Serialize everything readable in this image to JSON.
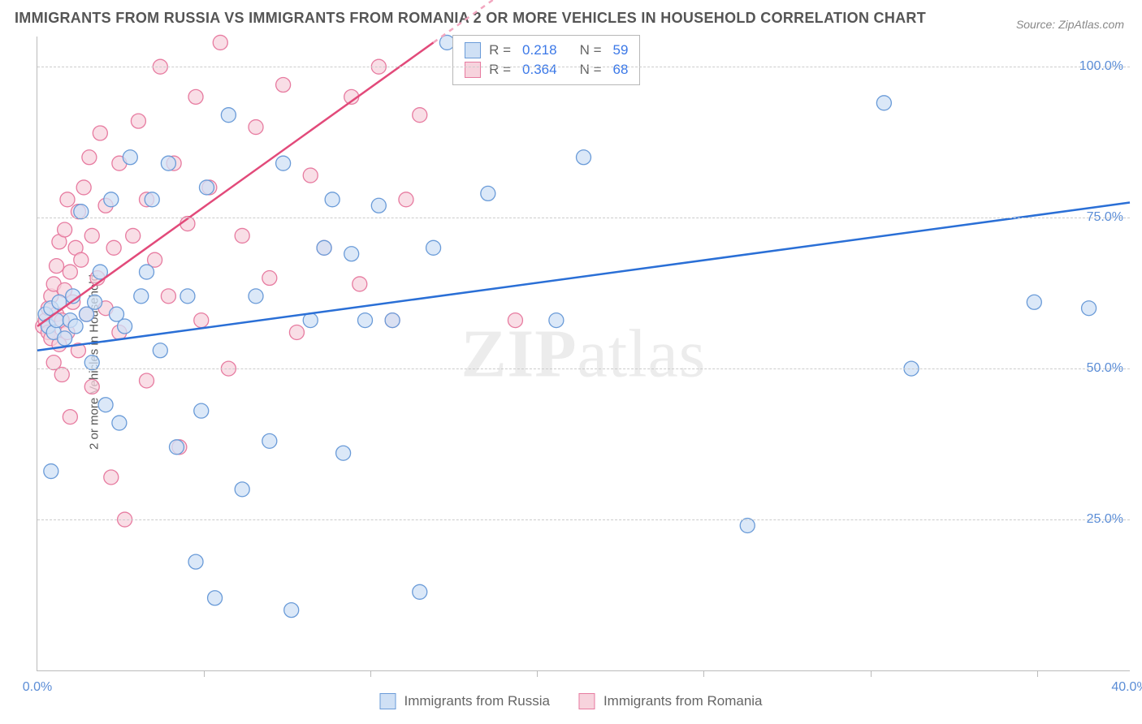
{
  "title": "IMMIGRANTS FROM RUSSIA VS IMMIGRANTS FROM ROMANIA 2 OR MORE VEHICLES IN HOUSEHOLD CORRELATION CHART",
  "source": "Source: ZipAtlas.com",
  "y_axis_label": "2 or more Vehicles in Household",
  "watermark_bold": "ZIP",
  "watermark_light": "atlas",
  "chart": {
    "type": "scatter",
    "background_color": "#ffffff",
    "grid_color": "#cccccc",
    "axis_color": "#bbbbbb",
    "xlim": [
      0,
      40
    ],
    "ylim": [
      0,
      105
    ],
    "x_ticks": [
      0,
      40
    ],
    "x_tick_labels": [
      "0.0%",
      "40.0%"
    ],
    "x_minor_ticks": [
      6.1,
      12.2,
      18.3,
      24.4,
      30.5,
      36.6
    ],
    "y_ticks": [
      25,
      50,
      75,
      100
    ],
    "y_tick_labels": [
      "25.0%",
      "50.0%",
      "75.0%",
      "100.0%"
    ],
    "series": [
      {
        "name": "Immigrants from Russia",
        "label": "Immigrants from Russia",
        "marker_fill": "#cfe0f5",
        "marker_stroke": "#6a9bd8",
        "marker_radius": 9,
        "line_color": "#2a6fd6",
        "line_width": 2.5,
        "dash_color": "#9ab8e6",
        "R": "0.218",
        "N": "59",
        "trend": {
          "x1": 0,
          "y1": 53,
          "x2": 40,
          "y2": 77.5
        },
        "points": [
          [
            0.3,
            59
          ],
          [
            0.4,
            57
          ],
          [
            0.5,
            60
          ],
          [
            0.6,
            56
          ],
          [
            0.7,
            58
          ],
          [
            0.8,
            61
          ],
          [
            0.5,
            33
          ],
          [
            1.0,
            55
          ],
          [
            1.2,
            58
          ],
          [
            1.3,
            62
          ],
          [
            1.4,
            57
          ],
          [
            1.6,
            76
          ],
          [
            1.8,
            59
          ],
          [
            2.0,
            51
          ],
          [
            2.1,
            61
          ],
          [
            2.3,
            66
          ],
          [
            2.5,
            44
          ],
          [
            2.7,
            78
          ],
          [
            2.9,
            59
          ],
          [
            3.0,
            41
          ],
          [
            3.2,
            57
          ],
          [
            3.4,
            85
          ],
          [
            3.8,
            62
          ],
          [
            4.0,
            66
          ],
          [
            4.2,
            78
          ],
          [
            4.5,
            53
          ],
          [
            4.8,
            84
          ],
          [
            5.1,
            37
          ],
          [
            5.5,
            62
          ],
          [
            5.8,
            18
          ],
          [
            6.0,
            43
          ],
          [
            6.2,
            80
          ],
          [
            6.5,
            12
          ],
          [
            7.0,
            92
          ],
          [
            7.5,
            30
          ],
          [
            8.0,
            62
          ],
          [
            8.5,
            38
          ],
          [
            9.0,
            84
          ],
          [
            9.3,
            10
          ],
          [
            10.0,
            58
          ],
          [
            10.5,
            70
          ],
          [
            10.8,
            78
          ],
          [
            11.2,
            36
          ],
          [
            11.5,
            69
          ],
          [
            12.0,
            58
          ],
          [
            12.5,
            77
          ],
          [
            13.0,
            58
          ],
          [
            14.0,
            13
          ],
          [
            14.5,
            70
          ],
          [
            15.0,
            104
          ],
          [
            16.5,
            79
          ],
          [
            18.0,
            103
          ],
          [
            19.0,
            58
          ],
          [
            20.0,
            85
          ],
          [
            26.0,
            24
          ],
          [
            31.0,
            94
          ],
          [
            32.0,
            50
          ],
          [
            36.5,
            61
          ],
          [
            38.5,
            60
          ]
        ]
      },
      {
        "name": "Immigrants from Romania",
        "label": "Immigrants from Romania",
        "marker_fill": "#f7d3dd",
        "marker_stroke": "#e77ba0",
        "marker_radius": 9,
        "line_color": "#e24a7a",
        "line_width": 2.5,
        "dash_color": "#f2a6bf",
        "R": "0.364",
        "N": "68",
        "trend": {
          "x1": 0,
          "y1": 57,
          "x2": 14.5,
          "y2": 104
        },
        "trend_dash_to_x": 20,
        "points": [
          [
            0.2,
            57
          ],
          [
            0.3,
            58
          ],
          [
            0.4,
            56
          ],
          [
            0.4,
            60
          ],
          [
            0.5,
            55
          ],
          [
            0.5,
            62
          ],
          [
            0.6,
            64
          ],
          [
            0.6,
            51
          ],
          [
            0.7,
            59
          ],
          [
            0.7,
            67
          ],
          [
            0.8,
            54
          ],
          [
            0.8,
            71
          ],
          [
            0.9,
            58
          ],
          [
            0.9,
            49
          ],
          [
            1.0,
            63
          ],
          [
            1.0,
            73
          ],
          [
            1.1,
            56
          ],
          [
            1.1,
            78
          ],
          [
            1.2,
            66
          ],
          [
            1.2,
            42
          ],
          [
            1.3,
            61
          ],
          [
            1.4,
            70
          ],
          [
            1.5,
            76
          ],
          [
            1.5,
            53
          ],
          [
            1.6,
            68
          ],
          [
            1.7,
            80
          ],
          [
            1.8,
            59
          ],
          [
            1.9,
            85
          ],
          [
            2.0,
            47
          ],
          [
            2.0,
            72
          ],
          [
            2.2,
            65
          ],
          [
            2.3,
            89
          ],
          [
            2.5,
            60
          ],
          [
            2.5,
            77
          ],
          [
            2.7,
            32
          ],
          [
            2.8,
            70
          ],
          [
            3.0,
            84
          ],
          [
            3.0,
            56
          ],
          [
            3.2,
            25
          ],
          [
            3.5,
            72
          ],
          [
            3.7,
            91
          ],
          [
            4.0,
            48
          ],
          [
            4.0,
            78
          ],
          [
            4.3,
            68
          ],
          [
            4.5,
            100
          ],
          [
            4.8,
            62
          ],
          [
            5.0,
            84
          ],
          [
            5.2,
            37
          ],
          [
            5.5,
            74
          ],
          [
            5.8,
            95
          ],
          [
            6.0,
            58
          ],
          [
            6.3,
            80
          ],
          [
            6.7,
            104
          ],
          [
            7.0,
            50
          ],
          [
            7.5,
            72
          ],
          [
            8.0,
            90
          ],
          [
            8.5,
            65
          ],
          [
            9.0,
            97
          ],
          [
            9.5,
            56
          ],
          [
            10.0,
            82
          ],
          [
            10.5,
            70
          ],
          [
            11.5,
            95
          ],
          [
            11.8,
            64
          ],
          [
            12.5,
            100
          ],
          [
            13.5,
            78
          ],
          [
            14.0,
            92
          ],
          [
            17.5,
            58
          ],
          [
            13.0,
            58
          ]
        ]
      }
    ]
  },
  "legend_top": {
    "r_label": "R  =",
    "n_label": "N  ="
  },
  "colors": {
    "tick_label": "#5b8dd6",
    "text": "#555555"
  }
}
